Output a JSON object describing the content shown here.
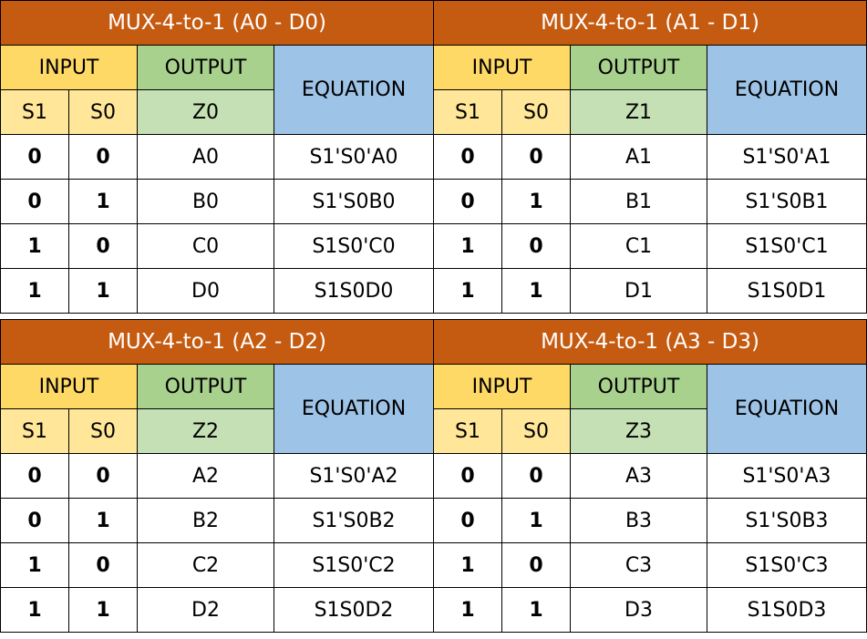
{
  "tables": [
    {
      "title": "MUX-4-to-1 (A0 - D0)",
      "input_label": "INPUT",
      "output_label": "OUTPUT",
      "equation_label": "EQUATION",
      "s1_label": "S1",
      "s0_label": "S0",
      "z_label": "Z0",
      "rows": [
        {
          "s1": "0",
          "s0": "0",
          "out": "A0",
          "eq": "S1'S0'A0"
        },
        {
          "s1": "0",
          "s0": "1",
          "out": "B0",
          "eq": "S1'S0B0"
        },
        {
          "s1": "1",
          "s0": "0",
          "out": "C0",
          "eq": "S1S0'C0"
        },
        {
          "s1": "1",
          "s0": "1",
          "out": "D0",
          "eq": "S1S0D0"
        }
      ]
    },
    {
      "title": "MUX-4-to-1 (A1 - D1)",
      "input_label": "INPUT",
      "output_label": "OUTPUT",
      "equation_label": "EQUATION",
      "s1_label": "S1",
      "s0_label": "S0",
      "z_label": "Z1",
      "rows": [
        {
          "s1": "0",
          "s0": "0",
          "out": "A1",
          "eq": "S1'S0'A1"
        },
        {
          "s1": "0",
          "s0": "1",
          "out": "B1",
          "eq": "S1'S0B1"
        },
        {
          "s1": "1",
          "s0": "0",
          "out": "C1",
          "eq": "S1S0'C1"
        },
        {
          "s1": "1",
          "s0": "1",
          "out": "D1",
          "eq": "S1S0D1"
        }
      ]
    },
    {
      "title": "MUX-4-to-1 (A2 - D2)",
      "input_label": "INPUT",
      "output_label": "OUTPUT",
      "equation_label": "EQUATION",
      "s1_label": "S1",
      "s0_label": "S0",
      "z_label": "Z2",
      "rows": [
        {
          "s1": "0",
          "s0": "0",
          "out": "A2",
          "eq": "S1'S0'A2"
        },
        {
          "s1": "0",
          "s0": "1",
          "out": "B2",
          "eq": "S1'S0B2"
        },
        {
          "s1": "1",
          "s0": "0",
          "out": "C2",
          "eq": "S1S0'C2"
        },
        {
          "s1": "1",
          "s0": "1",
          "out": "D2",
          "eq": "S1S0D2"
        }
      ]
    },
    {
      "title": "MUX-4-to-1 (A3 - D3)",
      "input_label": "INPUT",
      "output_label": "OUTPUT",
      "equation_label": "EQUATION",
      "s1_label": "S1",
      "s0_label": "S0",
      "z_label": "Z3",
      "rows": [
        {
          "s1": "0",
          "s0": "0",
          "out": "A3",
          "eq": "S1'S0'A3"
        },
        {
          "s1": "0",
          "s0": "1",
          "out": "B3",
          "eq": "S1'S0B3"
        },
        {
          "s1": "1",
          "s0": "0",
          "out": "C3",
          "eq": "S1S0'C3"
        },
        {
          "s1": "1",
          "s0": "1",
          "out": "D3",
          "eq": "S1S0D3"
        }
      ]
    }
  ],
  "colors": {
    "title_bg": "#c55a11",
    "input_header_bg": "#ffd966",
    "input_sub_bg": "#ffe699",
    "output_header_bg": "#a9d18e",
    "output_sub_bg": "#c5e0b4",
    "equation_header_bg": "#9dc3e6"
  }
}
